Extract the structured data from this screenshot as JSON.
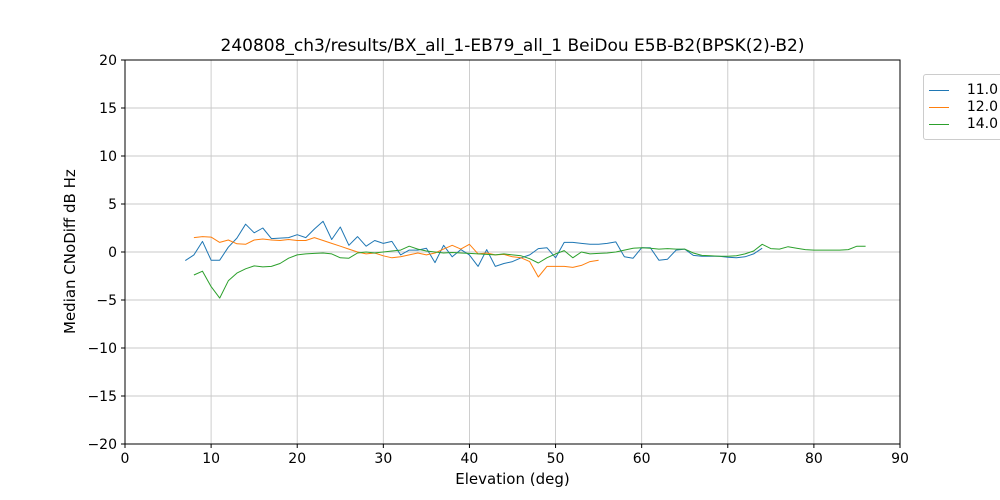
{
  "chart_data": {
    "type": "line",
    "title": "240808_ch3/results/BX_all_1-EB79_all_1 BeiDou E5B-B2(BPSK(2)-B2)",
    "xlabel": "Elevation (deg)",
    "ylabel": "Median CNoDiff dB Hz",
    "xlim": [
      0,
      90
    ],
    "ylim": [
      -20,
      20
    ],
    "xticks": [
      0,
      10,
      20,
      30,
      40,
      50,
      60,
      70,
      80,
      90
    ],
    "yticks": [
      -20,
      -15,
      -10,
      -5,
      0,
      5,
      10,
      15,
      20
    ],
    "grid": true,
    "grid_color": "#c9c9c9",
    "legend_position": "upper-right outside plot, clipped at image right edge",
    "series": [
      {
        "name": "11.0",
        "color": "#1f77b4",
        "x": [
          7,
          8,
          9,
          10,
          11,
          12,
          13,
          14,
          15,
          16,
          17,
          18,
          19,
          20,
          21,
          22,
          23,
          24,
          25,
          26,
          27,
          28,
          29,
          30,
          31,
          32,
          33,
          34,
          35,
          36,
          37,
          38,
          39,
          40,
          41,
          42,
          43,
          44,
          45,
          46,
          47,
          48,
          49,
          50,
          51,
          52,
          53,
          54,
          55,
          56,
          57,
          58,
          59,
          60,
          61,
          62,
          63,
          64,
          65,
          66,
          67,
          68,
          69,
          70,
          71,
          72,
          73,
          74
        ],
        "values": [
          -0.9,
          -0.3,
          1.1,
          -0.85,
          -0.85,
          0.5,
          1.45,
          2.9,
          2.0,
          2.5,
          1.4,
          1.45,
          1.5,
          1.8,
          1.5,
          2.4,
          3.2,
          1.3,
          2.6,
          0.7,
          1.6,
          0.6,
          1.2,
          0.9,
          1.1,
          -0.3,
          0.2,
          0.2,
          0.4,
          -1.1,
          0.7,
          -0.5,
          0.25,
          -0.3,
          -1.5,
          0.25,
          -1.5,
          -1.2,
          -1.0,
          -0.6,
          -0.3,
          0.35,
          0.45,
          -0.6,
          1.0,
          1.0,
          0.9,
          0.8,
          0.8,
          0.9,
          1.05,
          -0.5,
          -0.65,
          0.45,
          0.45,
          -0.85,
          -0.75,
          0.2,
          0.3,
          -0.35,
          -0.45,
          -0.45,
          -0.45,
          -0.55,
          -0.6,
          -0.5,
          -0.2,
          0.4
        ]
      },
      {
        "name": "12.0",
        "color": "#ff7f0e",
        "x": [
          8,
          9,
          10,
          11,
          12,
          13,
          14,
          15,
          16,
          17,
          18,
          19,
          20,
          21,
          22,
          23,
          24,
          25,
          26,
          27,
          28,
          29,
          30,
          31,
          32,
          33,
          34,
          35,
          36,
          37,
          38,
          39,
          40,
          41,
          42,
          43,
          44,
          45,
          46,
          47,
          48,
          49,
          50,
          51,
          52,
          53,
          54,
          55
        ],
        "values": [
          1.5,
          1.6,
          1.55,
          1.0,
          1.25,
          0.85,
          0.8,
          1.25,
          1.35,
          1.25,
          1.2,
          1.3,
          1.2,
          1.2,
          1.5,
          1.2,
          0.9,
          0.6,
          0.3,
          0.0,
          -0.2,
          -0.1,
          -0.4,
          -0.6,
          -0.5,
          -0.3,
          -0.1,
          -0.3,
          -0.1,
          0.3,
          0.7,
          0.3,
          0.8,
          -0.2,
          -0.1,
          -0.3,
          -0.25,
          -0.5,
          -0.6,
          -1.0,
          -2.6,
          -1.5,
          -1.5,
          -1.5,
          -1.6,
          -1.4,
          -1.0,
          -0.85
        ]
      },
      {
        "name": "14.0",
        "color": "#2ca02c",
        "x": [
          8,
          9,
          10,
          11,
          12,
          13,
          14,
          15,
          16,
          17,
          18,
          19,
          20,
          21,
          22,
          23,
          24,
          25,
          26,
          27,
          28,
          29,
          30,
          31,
          32,
          33,
          34,
          35,
          36,
          37,
          38,
          39,
          40,
          41,
          42,
          43,
          44,
          45,
          46,
          47,
          48,
          49,
          50,
          51,
          52,
          53,
          54,
          55,
          56,
          57,
          58,
          59,
          60,
          61,
          62,
          63,
          64,
          65,
          66,
          67,
          68,
          69,
          70,
          71,
          72,
          73,
          74,
          75,
          76,
          77,
          78,
          79,
          80,
          81,
          82,
          83,
          84,
          85,
          86
        ],
        "values": [
          -2.4,
          -2.0,
          -3.6,
          -4.8,
          -3.0,
          -2.2,
          -1.75,
          -1.45,
          -1.55,
          -1.5,
          -1.2,
          -0.65,
          -0.3,
          -0.2,
          -0.15,
          -0.1,
          -0.2,
          -0.6,
          -0.65,
          -0.1,
          0.0,
          -0.1,
          0.0,
          0.1,
          0.2,
          0.6,
          0.3,
          0.1,
          0.0,
          -0.1,
          -0.05,
          -0.1,
          -0.15,
          -0.2,
          -0.25,
          -0.3,
          -0.2,
          -0.3,
          -0.4,
          -0.7,
          -1.15,
          -0.6,
          -0.2,
          0.15,
          -0.6,
          0.0,
          -0.2,
          -0.15,
          -0.1,
          0.0,
          0.2,
          0.4,
          0.45,
          0.4,
          0.3,
          0.35,
          0.3,
          0.3,
          -0.1,
          -0.35,
          -0.4,
          -0.45,
          -0.45,
          -0.4,
          -0.2,
          0.1,
          0.8,
          0.35,
          0.3,
          0.55,
          0.4,
          0.25,
          0.2,
          0.2,
          0.2,
          0.2,
          0.25,
          0.6,
          0.6
        ]
      }
    ]
  }
}
